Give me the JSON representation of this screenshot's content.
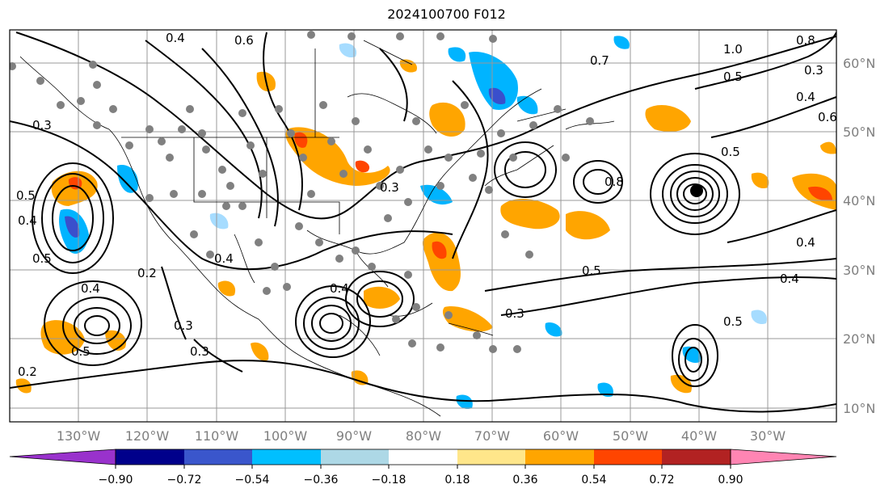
{
  "title": "2024100700 F012",
  "map": {
    "projection": "equirectangular",
    "lon_range": [
      -138,
      -18
    ],
    "lat_range": [
      7.5,
      65
    ],
    "lat_labels": [
      "60°N",
      "50°N",
      "40°N",
      "30°N",
      "20°N",
      "10°N"
    ],
    "lon_labels": [
      "130°W",
      "120°W",
      "110°W",
      "100°W",
      "90°W",
      "80°W",
      "70°W",
      "60°W",
      "50°W",
      "40°W",
      "30°W"
    ],
    "contour_labels": [
      "0.6",
      "0.4",
      "0.7",
      "1.0",
      "0.8",
      "0.3",
      "0.5",
      "0.4",
      "0.5",
      "0.3",
      "0.4",
      "0.5",
      "0.6",
      "0.4",
      "0.3",
      "0.5",
      "0.8",
      "0.5",
      "0.4",
      "0.5",
      "0.4",
      "0.4",
      "0.3",
      "0.2",
      "0.3",
      "0.5",
      "0.3",
      "0.2",
      "0.4"
    ],
    "gridlines": true,
    "coastlines": true,
    "state_borders": true,
    "station_markers": "gray-dots",
    "field_colors": {
      "orange": "#ffa500",
      "red": "#ff4500",
      "light_blue": "#a6dcff",
      "blue": "#00b4ff",
      "dark_blue": "#3a4fcc"
    }
  },
  "colorbar": {
    "ticks": [
      "−0.90",
      "−0.72",
      "−0.54",
      "−0.36",
      "−0.18",
      "0.18",
      "0.36",
      "0.54",
      "0.72",
      "0.90"
    ],
    "colors": [
      "#9932cc",
      "#00008b",
      "#3a56cc",
      "#00bfff",
      "#add8e6",
      "#ffffff",
      "#ffe68a",
      "#ffa500",
      "#ff4500",
      "#b22222",
      "#ff85b3"
    ],
    "extend": "both"
  }
}
